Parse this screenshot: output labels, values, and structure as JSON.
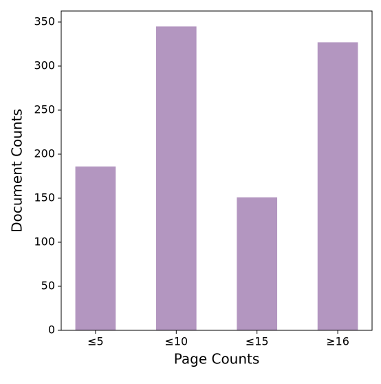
{
  "chart_data": {
    "type": "bar",
    "categories": [
      "≤5",
      "≤10",
      "≤15",
      "≥16"
    ],
    "values": [
      186,
      345,
      151,
      327
    ],
    "color": "#b396c0",
    "x_label": "Page Counts",
    "y_label": "Document Counts",
    "ylim": [
      0,
      362.5
    ],
    "yticks": [
      0,
      50,
      100,
      150,
      200,
      250,
      300,
      350
    ],
    "grid": false
  }
}
